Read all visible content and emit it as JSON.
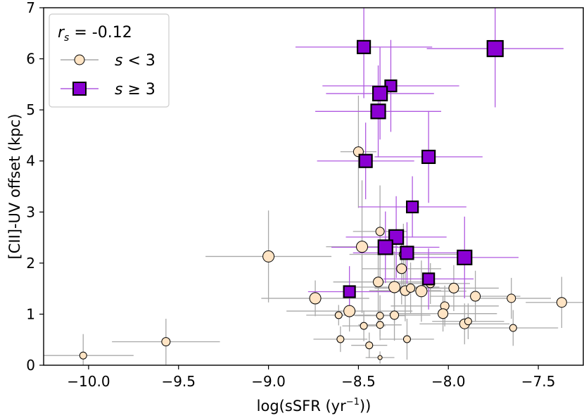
{
  "chart_data": {
    "type": "scatter",
    "xlabel": "log(sSFR (yr",
    "xlabel_sup": "−1",
    "xlabel_end": "))",
    "ylabel": "[CII]-UV offset (kpc)",
    "xlim": [
      -10.25,
      -7.25
    ],
    "ylim": [
      0,
      7
    ],
    "xticks": [
      -10.0,
      -9.5,
      -9.0,
      -8.5,
      -8.0,
      -7.5
    ],
    "xtick_labels": [
      "−10.0",
      "−9.5",
      "−9.0",
      "−8.5",
      "−8.0",
      "−7.5"
    ],
    "yticks": [
      0,
      1,
      2,
      3,
      4,
      5,
      6,
      7
    ],
    "ytick_labels": [
      "0",
      "1",
      "2",
      "3",
      "4",
      "5",
      "6",
      "7"
    ],
    "legend": {
      "position": "top-left",
      "stat_var": "r",
      "stat_sub": "s",
      "stat_value": " = -0.12",
      "entries": [
        {
          "var": "s",
          "op": " < 3",
          "marker": "circle"
        },
        {
          "var": "s",
          "op": " ≥ 3",
          "marker": "square"
        }
      ]
    },
    "colors": {
      "low_fill": "#ffe4c4",
      "low_err": "#a9a9a9",
      "high_fill": "#8b00d3",
      "high_err": "#b05ae0",
      "edge": "#000000"
    },
    "series": [
      {
        "name": "s < 3",
        "points": [
          {
            "x": -10.03,
            "y": 0.19,
            "xerr": 0.28,
            "yerr": 0.42,
            "size": 5
          },
          {
            "x": -9.57,
            "y": 0.46,
            "xerr": 0.3,
            "yerr": 0.45,
            "size": 6
          },
          {
            "x": -9.0,
            "y": 2.13,
            "xerr": 0.35,
            "yerr": 0.9,
            "size": 8
          },
          {
            "x": -8.74,
            "y": 1.31,
            "xerr": 0.3,
            "yerr": 0.35,
            "size": 8
          },
          {
            "x": -8.61,
            "y": 0.98,
            "xerr": 0.18,
            "yerr": 0.2,
            "size": 5
          },
          {
            "x": -8.6,
            "y": 0.51,
            "xerr": 0.15,
            "yerr": 0.25,
            "size": 5
          },
          {
            "x": -8.55,
            "y": 1.06,
            "xerr": 0.35,
            "yerr": 0.4,
            "size": 8
          },
          {
            "x": -8.5,
            "y": 4.18,
            "xerr": 0.1,
            "yerr": 1.1,
            "size": 7
          },
          {
            "x": -8.48,
            "y": 2.32,
            "xerr": 0.2,
            "yerr": 1.3,
            "size": 8
          },
          {
            "x": -8.47,
            "y": 0.77,
            "xerr": 0.12,
            "yerr": 0.3,
            "size": 5
          },
          {
            "x": -8.44,
            "y": 0.39,
            "xerr": 0.1,
            "yerr": 0.25,
            "size": 5
          },
          {
            "x": -8.39,
            "y": 1.63,
            "xerr": 0.25,
            "yerr": 0.8,
            "size": 7
          },
          {
            "x": -8.38,
            "y": 2.62,
            "xerr": 0.15,
            "yerr": 0.9,
            "size": 6
          },
          {
            "x": -8.38,
            "y": 0.97,
            "xerr": 0.14,
            "yerr": 0.4,
            "size": 5
          },
          {
            "x": -8.38,
            "y": 0.79,
            "xerr": 0.12,
            "yerr": 0.3,
            "size": 5
          },
          {
            "x": -8.38,
            "y": 0.15,
            "xerr": 0.08,
            "yerr": 0.12,
            "size": 3
          },
          {
            "x": -8.3,
            "y": 1.53,
            "xerr": 0.25,
            "yerr": 0.7,
            "size": 8
          },
          {
            "x": -8.3,
            "y": 0.98,
            "xerr": 0.2,
            "yerr": 0.5,
            "size": 6
          },
          {
            "x": -8.26,
            "y": 1.89,
            "xerr": 0.22,
            "yerr": 0.7,
            "size": 7
          },
          {
            "x": -8.25,
            "y": 2.17,
            "xerr": 0.3,
            "yerr": 0.6,
            "size": 6
          },
          {
            "x": -8.24,
            "y": 1.46,
            "xerr": 0.2,
            "yerr": 0.6,
            "size": 7
          },
          {
            "x": -8.23,
            "y": 0.51,
            "xerr": 0.15,
            "yerr": 0.4,
            "size": 5
          },
          {
            "x": -8.21,
            "y": 1.51,
            "xerr": 0.2,
            "yerr": 0.5,
            "size": 6
          },
          {
            "x": -8.15,
            "y": 1.45,
            "xerr": 0.25,
            "yerr": 0.6,
            "size": 8
          },
          {
            "x": -8.1,
            "y": 1.6,
            "xerr": 0.22,
            "yerr": 0.4,
            "size": 6
          },
          {
            "x": -8.02,
            "y": 1.16,
            "xerr": 0.3,
            "yerr": 0.4,
            "size": 6
          },
          {
            "x": -8.03,
            "y": 1.01,
            "xerr": 0.3,
            "yerr": 0.35,
            "size": 7
          },
          {
            "x": -7.97,
            "y": 1.51,
            "xerr": 0.25,
            "yerr": 0.45,
            "size": 7
          },
          {
            "x": -7.91,
            "y": 0.81,
            "xerr": 0.25,
            "yerr": 0.4,
            "size": 7
          },
          {
            "x": -7.89,
            "y": 0.86,
            "xerr": 0.2,
            "yerr": 0.35,
            "size": 5
          },
          {
            "x": -7.85,
            "y": 1.35,
            "xerr": 0.25,
            "yerr": 0.5,
            "size": 7
          },
          {
            "x": -7.65,
            "y": 1.31,
            "xerr": 0.22,
            "yerr": 0.4,
            "size": 6
          },
          {
            "x": -7.64,
            "y": 0.73,
            "xerr": 0.25,
            "yerr": 0.35,
            "size": 5
          },
          {
            "x": -7.37,
            "y": 1.23,
            "xerr": 0.2,
            "yerr": 0.5,
            "size": 7
          }
        ]
      },
      {
        "name": "s ≥ 3",
        "points": [
          {
            "x": -8.47,
            "y": 6.23,
            "xerr": 0.38,
            "yerr": 1.0,
            "size": 9
          },
          {
            "x": -7.74,
            "y": 6.2,
            "xerr": 0.38,
            "yerr": 1.15,
            "size": 11
          },
          {
            "x": -8.32,
            "y": 5.47,
            "xerr": 0.38,
            "yerr": 0.9,
            "size": 8
          },
          {
            "x": -8.38,
            "y": 5.32,
            "xerr": 0.3,
            "yerr": 0.9,
            "size": 10
          },
          {
            "x": -8.39,
            "y": 4.97,
            "xerr": 0.35,
            "yerr": 0.9,
            "size": 10
          },
          {
            "x": -8.11,
            "y": 4.08,
            "xerr": 0.3,
            "yerr": 0.9,
            "size": 9
          },
          {
            "x": -8.46,
            "y": 4.0,
            "xerr": 0.27,
            "yerr": 0.75,
            "size": 9
          },
          {
            "x": -8.2,
            "y": 3.1,
            "xerr": 0.3,
            "yerr": 0.6,
            "size": 8
          },
          {
            "x": -8.29,
            "y": 2.51,
            "xerr": 0.28,
            "yerr": 0.8,
            "size": 10
          },
          {
            "x": -8.35,
            "y": 2.31,
            "xerr": 0.3,
            "yerr": 0.7,
            "size": 10
          },
          {
            "x": -8.23,
            "y": 2.2,
            "xerr": 0.3,
            "yerr": 0.6,
            "size": 9
          },
          {
            "x": -7.91,
            "y": 2.11,
            "xerr": 0.3,
            "yerr": 0.8,
            "size": 10
          },
          {
            "x": -8.11,
            "y": 1.69,
            "xerr": 0.25,
            "yerr": 0.6,
            "size": 8
          },
          {
            "x": -8.55,
            "y": 1.44,
            "xerr": 0.23,
            "yerr": 0.5,
            "size": 8
          }
        ]
      }
    ]
  }
}
